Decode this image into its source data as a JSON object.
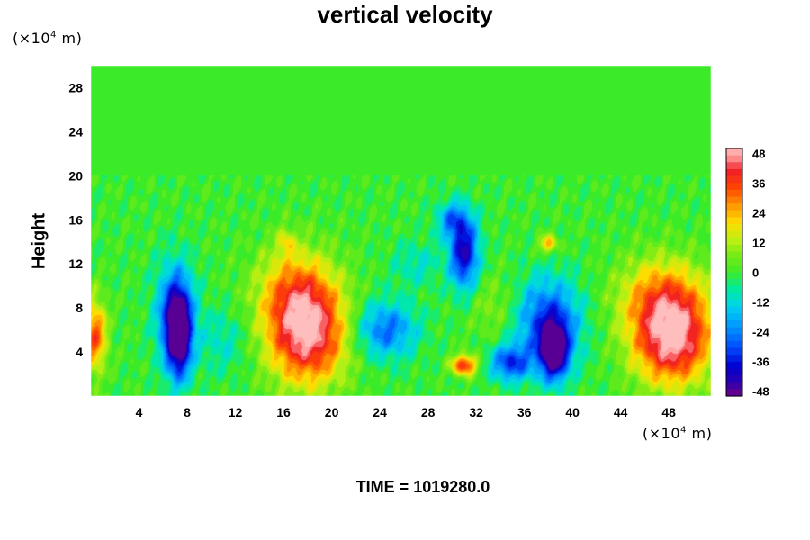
{
  "chart_data": {
    "type": "heatmap",
    "title": "vertical velocity",
    "ylabel": "Height",
    "x_unit": {
      "prefix": "(×10",
      "exponent": "4",
      "suffix": " m)"
    },
    "y_unit": {
      "prefix": "(×10",
      "exponent": "4",
      "suffix": " m)"
    },
    "xlim": [
      0,
      51.5
    ],
    "ylim": [
      0,
      30
    ],
    "x_ticks": [
      4,
      8,
      12,
      16,
      20,
      24,
      28,
      32,
      36,
      40,
      44,
      48
    ],
    "y_ticks": [
      4,
      8,
      12,
      16,
      20,
      24,
      28
    ],
    "colorbar": {
      "min": -50,
      "max": 50,
      "ticks": [
        48,
        36,
        24,
        12,
        0,
        -12,
        -24,
        -36,
        -48
      ]
    },
    "field_features": [
      {
        "kind": "downdraft",
        "x": 7.3,
        "y": 5.5,
        "value": -50,
        "sx": 1.0,
        "sy": 3.8
      },
      {
        "kind": "downdraft",
        "x": 7.0,
        "y": 7.5,
        "value": -30,
        "sx": 1.6,
        "sy": 4.5
      },
      {
        "kind": "updraft",
        "x": 18.0,
        "y": 5.5,
        "value": 46,
        "sx": 3.2,
        "sy": 4.5
      },
      {
        "kind": "updraft",
        "x": 17.0,
        "y": 9.5,
        "value": 24,
        "sx": 3.2,
        "sy": 4.0
      },
      {
        "kind": "updraft",
        "x": 16.2,
        "y": 14.0,
        "value": 14,
        "sx": 0.7,
        "sy": 1.2
      },
      {
        "kind": "downdraft",
        "x": 24.5,
        "y": 6.0,
        "value": -27,
        "sx": 2.5,
        "sy": 2.5
      },
      {
        "kind": "updraft",
        "x": 31.0,
        "y": 2.8,
        "value": 40,
        "sx": 1.0,
        "sy": 0.9
      },
      {
        "kind": "downdraft",
        "x": 31.0,
        "y": 13.0,
        "value": -42,
        "sx": 1.2,
        "sy": 3.2
      },
      {
        "kind": "downdraft",
        "x": 30.0,
        "y": 16.0,
        "value": -22,
        "sx": 1.3,
        "sy": 1.6
      },
      {
        "kind": "downdraft",
        "x": 38.5,
        "y": 4.0,
        "value": -50,
        "sx": 1.1,
        "sy": 2.4
      },
      {
        "kind": "downdraft",
        "x": 38.0,
        "y": 6.5,
        "value": -35,
        "sx": 2.6,
        "sy": 4.0
      },
      {
        "kind": "downdraft",
        "x": 34.8,
        "y": 3.0,
        "value": -32,
        "sx": 1.6,
        "sy": 1.6
      },
      {
        "kind": "updraft",
        "x": 38.0,
        "y": 13.8,
        "value": 24,
        "sx": 0.8,
        "sy": 0.8
      },
      {
        "kind": "updraft",
        "x": 48.3,
        "y": 5.0,
        "value": 48,
        "sx": 3.2,
        "sy": 4.0
      },
      {
        "kind": "updraft",
        "x": 47.5,
        "y": 9.0,
        "value": 26,
        "sx": 3.6,
        "sy": 3.6
      },
      {
        "kind": "updraft",
        "x": 0.3,
        "y": 5.5,
        "value": 34,
        "sx": 1.0,
        "sy": 3.2
      },
      {
        "kind": "downdraft",
        "x": 11.0,
        "y": 5.0,
        "value": -10,
        "sx": 2.0,
        "sy": 3.0
      },
      {
        "kind": "downdraft",
        "x": 27.0,
        "y": 12.0,
        "value": -10,
        "sx": 2.0,
        "sy": 2.0
      },
      {
        "kind": "updraft",
        "x": 33.5,
        "y": 8.0,
        "value": 8,
        "sx": 2.0,
        "sy": 3.0
      }
    ]
  },
  "time_label": "TIME = 1019280.0",
  "colors": {
    "background": "#ffffff",
    "text": "#000000",
    "neutral_field": "#33ee22"
  }
}
